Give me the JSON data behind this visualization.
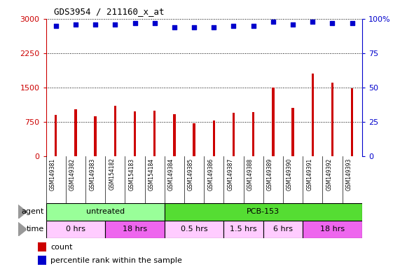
{
  "title": "GDS3954 / 211160_x_at",
  "samples": [
    "GSM149381",
    "GSM149382",
    "GSM149383",
    "GSM154182",
    "GSM154183",
    "GSM154184",
    "GSM149384",
    "GSM149385",
    "GSM149386",
    "GSM149387",
    "GSM149388",
    "GSM149389",
    "GSM149390",
    "GSM149391",
    "GSM149392",
    "GSM149393"
  ],
  "counts": [
    900,
    1020,
    870,
    1100,
    980,
    990,
    920,
    720,
    780,
    940,
    960,
    1500,
    1050,
    1800,
    1600,
    1480
  ],
  "percentile_ranks": [
    95,
    96,
    96,
    96,
    97,
    97,
    94,
    94,
    94,
    95,
    95,
    98,
    96,
    98,
    97,
    97
  ],
  "ylim_left": [
    0,
    3000
  ],
  "ylim_right": [
    0,
    100
  ],
  "yticks_left": [
    0,
    750,
    1500,
    2250,
    3000
  ],
  "yticks_right": [
    0,
    25,
    50,
    75,
    100
  ],
  "bar_color": "#cc0000",
  "dot_color": "#0000cc",
  "background_color": "#ffffff",
  "grid_color": "#000000",
  "agent_row": [
    {
      "label": "untreated",
      "start": 0,
      "end": 6,
      "color": "#99ff99"
    },
    {
      "label": "PCB-153",
      "start": 6,
      "end": 16,
      "color": "#55dd33"
    }
  ],
  "time_row": [
    {
      "label": "0 hrs",
      "start": 0,
      "end": 3,
      "color": "#ffccff"
    },
    {
      "label": "18 hrs",
      "start": 3,
      "end": 6,
      "color": "#ee66ee"
    },
    {
      "label": "0.5 hrs",
      "start": 6,
      "end": 9,
      "color": "#ffccff"
    },
    {
      "label": "1.5 hrs",
      "start": 9,
      "end": 11,
      "color": "#ffccff"
    },
    {
      "label": "6 hrs",
      "start": 11,
      "end": 13,
      "color": "#ffccff"
    },
    {
      "label": "18 hrs",
      "start": 13,
      "end": 16,
      "color": "#ee66ee"
    }
  ],
  "legend_count_color": "#cc0000",
  "legend_pct_color": "#0000cc",
  "tick_color_left": "#cc0000",
  "tick_color_right": "#0000cc"
}
